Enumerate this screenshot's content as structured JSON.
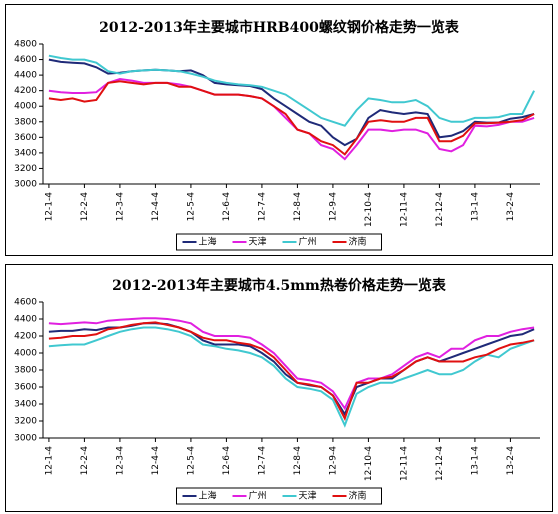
{
  "chart_data": [
    {
      "type": "line",
      "title": "2012-2013年主要城市HRB400螺纹钢价格走势一览表",
      "categories": [
        "12-1-4",
        null,
        null,
        "12-2-4",
        null,
        null,
        "12-3-4",
        null,
        null,
        "12-4-4",
        null,
        null,
        "12-5-4",
        null,
        null,
        "12-6-4",
        null,
        null,
        "12-7-4",
        null,
        null,
        "12-8-4",
        null,
        null,
        "12-9-4",
        null,
        null,
        "12-10-4",
        null,
        null,
        "12-11-4",
        null,
        null,
        "12-12-4",
        null,
        null,
        "13-1-4",
        null,
        null,
        "13-2-4",
        null,
        null
      ],
      "ylim": [
        3000,
        4800
      ],
      "yticks": [
        3000,
        3200,
        3400,
        3600,
        3800,
        4000,
        4200,
        4400,
        4600,
        4800
      ],
      "series": [
        {
          "name": "上海",
          "color": "#1f2a78",
          "values": [
            4600,
            4570,
            4560,
            4550,
            4500,
            4420,
            4430,
            4450,
            4460,
            4470,
            4460,
            4450,
            4460,
            4400,
            4300,
            4280,
            4270,
            4260,
            4220,
            4100,
            4000,
            3900,
            3800,
            3750,
            3600,
            3500,
            3580,
            3850,
            3950,
            3920,
            3900,
            3920,
            3900,
            3600,
            3620,
            3680,
            3800,
            3790,
            3790,
            3840,
            3860,
            3900
          ]
        },
        {
          "name": "天津",
          "color": "#e020e0",
          "values": [
            4200,
            4180,
            4170,
            4170,
            4180,
            4300,
            4350,
            4330,
            4300,
            4300,
            4300,
            4280,
            4250,
            4200,
            4150,
            4150,
            4150,
            4130,
            4100,
            4000,
            3850,
            3700,
            3650,
            3500,
            3450,
            3320,
            3500,
            3700,
            3700,
            3680,
            3700,
            3700,
            3650,
            3450,
            3420,
            3500,
            3750,
            3740,
            3760,
            3800,
            3800,
            3850
          ]
        },
        {
          "name": "广州",
          "color": "#40c8d0",
          "values": [
            4650,
            4620,
            4600,
            4600,
            4560,
            4450,
            4420,
            4450,
            4460,
            4470,
            4460,
            4450,
            4420,
            4380,
            4330,
            4300,
            4280,
            4270,
            4250,
            4200,
            4150,
            4050,
            3950,
            3850,
            3800,
            3750,
            3950,
            4100,
            4080,
            4050,
            4050,
            4080,
            4000,
            3850,
            3800,
            3800,
            3850,
            3850,
            3860,
            3900,
            3900,
            4200
          ]
        },
        {
          "name": "济南",
          "color": "#e01010",
          "values": [
            4100,
            4080,
            4100,
            4060,
            4080,
            4300,
            4320,
            4300,
            4280,
            4300,
            4300,
            4250,
            4250,
            4200,
            4150,
            4150,
            4150,
            4130,
            4100,
            4000,
            3900,
            3700,
            3650,
            3550,
            3500,
            3380,
            3580,
            3800,
            3820,
            3800,
            3800,
            3850,
            3850,
            3550,
            3550,
            3620,
            3780,
            3780,
            3790,
            3800,
            3820,
            3900
          ]
        }
      ]
    },
    {
      "type": "line",
      "title": "2012-2013年主要城市4.5mm热卷价格走势一览表",
      "categories": [
        "12-1-4",
        null,
        null,
        "12-2-4",
        null,
        null,
        "12-3-4",
        null,
        null,
        "12-4-4",
        null,
        null,
        "12-5-4",
        null,
        null,
        "12-6-4",
        null,
        null,
        "12-7-4",
        null,
        null,
        "12-8-4",
        null,
        null,
        "12-9-4",
        null,
        null,
        "12-10-4",
        null,
        null,
        "12-11-4",
        null,
        null,
        "12-12-4",
        null,
        null,
        "13-1-4",
        null,
        null,
        "13-2-4",
        null,
        null
      ],
      "ylim": [
        3000,
        4600
      ],
      "yticks": [
        3000,
        3200,
        3400,
        3600,
        3800,
        4000,
        4200,
        4400,
        4600
      ],
      "series": [
        {
          "name": "上海",
          "color": "#1f2a78",
          "values": [
            4250,
            4260,
            4260,
            4280,
            4270,
            4300,
            4300,
            4320,
            4350,
            4350,
            4340,
            4300,
            4250,
            4150,
            4100,
            4100,
            4100,
            4080,
            4000,
            3900,
            3750,
            3650,
            3620,
            3600,
            3500,
            3280,
            3600,
            3650,
            3700,
            3700,
            3800,
            3900,
            3950,
            3900,
            3950,
            4000,
            4050,
            4100,
            4150,
            4200,
            4220,
            4280
          ]
        },
        {
          "name": "广州",
          "color": "#e020e0",
          "values": [
            4350,
            4340,
            4350,
            4360,
            4350,
            4380,
            4390,
            4400,
            4410,
            4410,
            4400,
            4380,
            4350,
            4250,
            4200,
            4200,
            4200,
            4180,
            4100,
            4000,
            3850,
            3700,
            3680,
            3650,
            3550,
            3350,
            3650,
            3700,
            3700,
            3750,
            3850,
            3950,
            4000,
            3950,
            4050,
            4050,
            4150,
            4200,
            4200,
            4250,
            4280,
            4300
          ]
        },
        {
          "name": "天津",
          "color": "#40c8d0",
          "values": [
            4080,
            4090,
            4100,
            4100,
            4150,
            4200,
            4250,
            4280,
            4300,
            4300,
            4280,
            4250,
            4200,
            4100,
            4080,
            4050,
            4030,
            4000,
            3950,
            3850,
            3700,
            3600,
            3580,
            3550,
            3450,
            3150,
            3520,
            3600,
            3650,
            3650,
            3700,
            3750,
            3800,
            3750,
            3750,
            3800,
            3900,
            3980,
            3950,
            4050,
            4100,
            4150
          ]
        },
        {
          "name": "济南",
          "color": "#e01010",
          "values": [
            4170,
            4180,
            4200,
            4200,
            4220,
            4280,
            4300,
            4330,
            4350,
            4360,
            4330,
            4300,
            4250,
            4180,
            4150,
            4150,
            4120,
            4100,
            4050,
            3950,
            3800,
            3650,
            3630,
            3600,
            3500,
            3230,
            3650,
            3650,
            3700,
            3720,
            3800,
            3900,
            3950,
            3900,
            3900,
            3900,
            3950,
            3980,
            4050,
            4100,
            4120,
            4150
          ]
        }
      ]
    }
  ]
}
